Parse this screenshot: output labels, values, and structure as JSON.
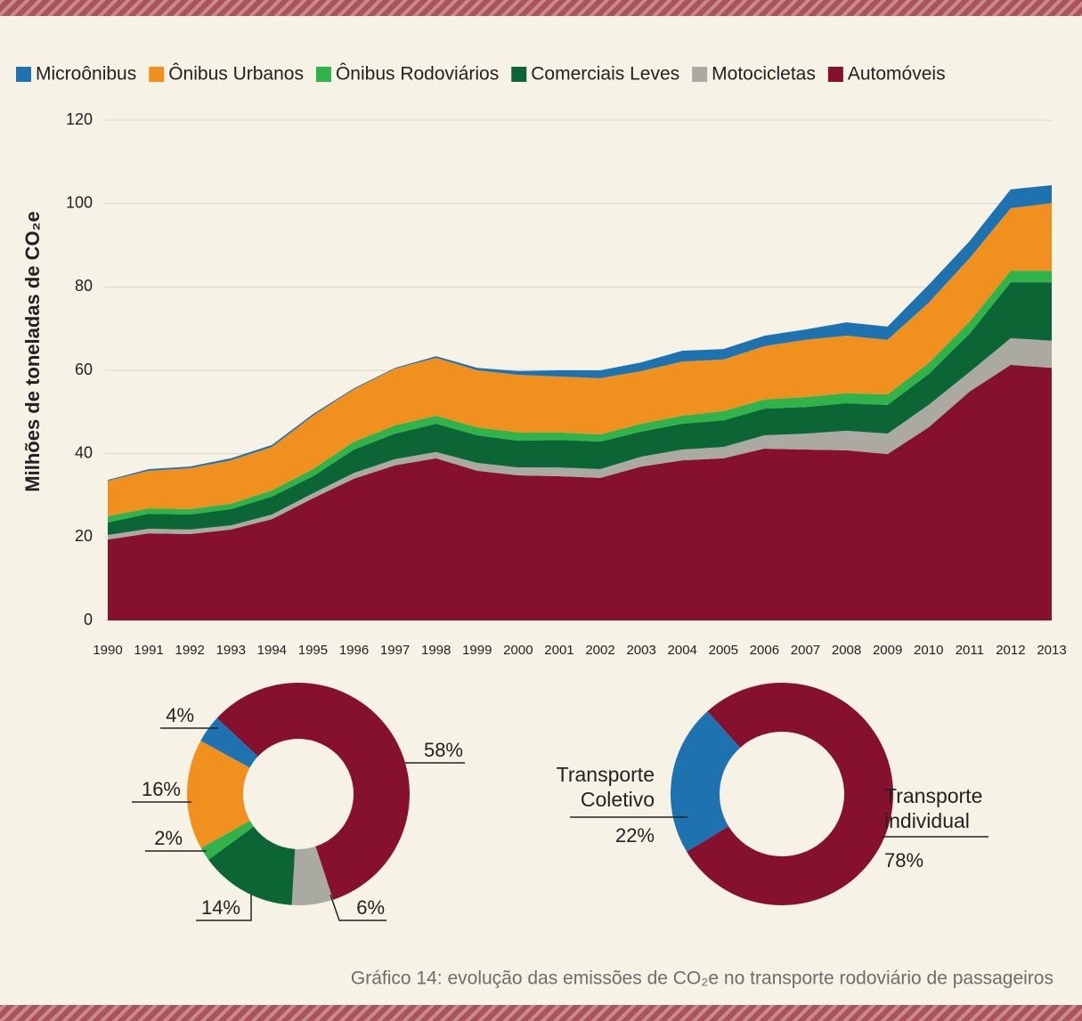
{
  "chart_data": [
    {
      "type": "stacked_area",
      "ylabel": "Milhões de toneladas de CO₂e",
      "x": [
        1990,
        1991,
        1992,
        1993,
        1994,
        1995,
        1996,
        1997,
        1998,
        1999,
        2000,
        2001,
        2002,
        2003,
        2004,
        2005,
        2006,
        2007,
        2008,
        2009,
        2010,
        2011,
        2012,
        2013
      ],
      "xlim": [
        1990,
        2013
      ],
      "xticks": [
        1990,
        1991,
        1992,
        1993,
        1994,
        1995,
        1996,
        1997,
        1998,
        1999,
        2000,
        2001,
        2002,
        2003,
        2004,
        2005,
        2006,
        2007,
        2008,
        2009,
        2010,
        2011,
        2012,
        2013
      ],
      "ylim": [
        0,
        120
      ],
      "yticks": [
        0,
        20,
        40,
        60,
        80,
        100,
        120
      ],
      "grid": true,
      "series": [
        {
          "name": "Microônibus",
          "color": "#1f72b0",
          "values": [
            0.2,
            0.4,
            0.4,
            0.5,
            0.5,
            0.4,
            0.2,
            0.2,
            0.4,
            0.6,
            0.9,
            1.5,
            1.9,
            2.1,
            2.6,
            2.5,
            2.5,
            2.5,
            3.2,
            3.2,
            4.3,
            4.1,
            4.5,
            4.3
          ]
        },
        {
          "name": "Ônibus Urbanos",
          "color": "#f0901e",
          "values": [
            8.5,
            9,
            9.8,
            10.4,
            10.4,
            12.8,
            12.6,
            13.6,
            13.9,
            13.7,
            13.8,
            13.4,
            13.5,
            12.6,
            13,
            12.4,
            12.8,
            13.7,
            13.8,
            13.1,
            14.5,
            15.2,
            15,
            16.2
          ]
        },
        {
          "name": "Ônibus Rodoviários",
          "color": "#2fb34a",
          "values": [
            1.5,
            1.3,
            1.3,
            1.3,
            1.5,
            1.7,
            1.9,
            2,
            1.9,
            1.9,
            2,
            1.8,
            1.7,
            1.9,
            1.9,
            2.2,
            2.2,
            2.4,
            2.4,
            2.5,
            2.6,
            2.9,
            2.8,
            2.8
          ]
        },
        {
          "name": "Comerciais Leves",
          "color": "#0c6534",
          "values": [
            3,
            3.6,
            3.6,
            3.9,
            4.3,
            4.1,
            5.6,
            6.1,
            6.8,
            6.6,
            6.4,
            6.6,
            6.6,
            6,
            6.2,
            6.4,
            6.4,
            6.4,
            6.6,
            6.9,
            7.4,
            9.2,
            13.4,
            14
          ]
        },
        {
          "name": "Motocicletas",
          "color": "#aaa9a2",
          "values": [
            1.1,
            1.1,
            1.1,
            1,
            1.1,
            1.2,
            1.4,
            1.5,
            1.5,
            1.9,
            1.9,
            2.1,
            2.1,
            2.4,
            2.6,
            2.7,
            3.2,
            3.8,
            4.7,
            4.9,
            5.4,
            4.7,
            6.4,
            6.5
          ]
        },
        {
          "name": "Automóveis",
          "color": "#85112f",
          "values": [
            19.4,
            20.9,
            20.7,
            21.8,
            24.3,
            29.3,
            34,
            37.2,
            38.9,
            35.9,
            34.8,
            34.6,
            34.2,
            36.9,
            38.4,
            38.9,
            41.2,
            41,
            40.8,
            39.9,
            46.3,
            54.9,
            61.3,
            60.6
          ]
        }
      ]
    },
    {
      "type": "donut",
      "categories": [
        "Automóveis",
        "Motocicletas",
        "Comerciais Leves",
        "Ônibus Rodoviários",
        "Ônibus Urbanos",
        "Microônibus"
      ],
      "values": [
        58,
        6,
        14,
        2,
        16,
        4
      ],
      "value_labels": [
        "58%",
        "6%",
        "14%",
        "2%",
        "16%",
        "4%"
      ],
      "colors": [
        "#85112f",
        "#aaa9a2",
        "#0c6534",
        "#2fb34a",
        "#f0901e",
        "#1f72b0"
      ]
    },
    {
      "type": "donut",
      "categories": [
        "Transporte individual",
        "Transporte Coletivo"
      ],
      "values": [
        78,
        22
      ],
      "value_labels": [
        "78%",
        "22%"
      ],
      "colors": [
        "#85112f",
        "#1f72b0"
      ]
    }
  ],
  "caption": "Gráfico 14: evolução das emissões de CO₂e no transporte rodoviário de passageiros"
}
